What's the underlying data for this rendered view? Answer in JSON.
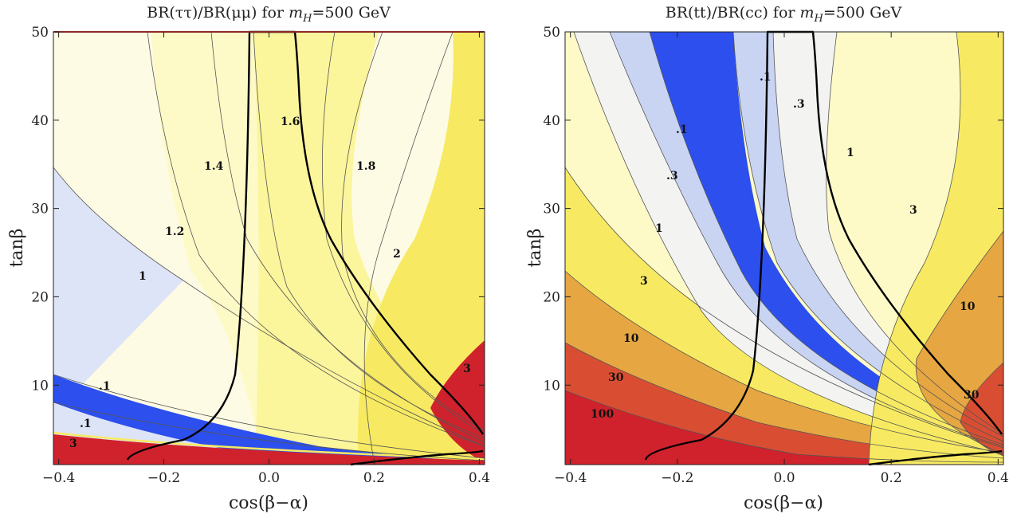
{
  "colors": {
    "red": "#d0222c",
    "orange_red": "#d94e33",
    "orange": "#e6a641",
    "yellow": "#f7ea62",
    "yellow_mid": "#fbf59c",
    "yellow_light": "#fdfac8",
    "cream": "#fefbe4",
    "light_gray": "#f3f4f1",
    "light_blue": "#c9d4f3",
    "blue": "#2c4fed",
    "pale_blue": "#dde4f7"
  },
  "chart_data": [
    {
      "type": "contour",
      "title_main": "BR(ττ)/BR(μμ) for ",
      "title_var": "m",
      "title_sub": "H",
      "title_tail": "=500 GeV",
      "xlabel": "cos(β−α)",
      "ylabel": "tanβ",
      "xlim": [
        -0.41,
        0.41
      ],
      "ylim": [
        1,
        50
      ],
      "x_ticks": [
        "−0.4",
        "−0.2",
        "0.0",
        "0.2",
        "0.4"
      ],
      "x_tick_values": [
        -0.4,
        -0.2,
        0.0,
        0.2,
        0.4
      ],
      "y_ticks": [
        "10",
        "20",
        "30",
        "40",
        "50"
      ],
      "y_tick_values": [
        10,
        20,
        30,
        40,
        50
      ],
      "contour_levels": [
        ".1",
        ".1",
        "1",
        "1.2",
        "1.4",
        "1.6",
        "1.8",
        "2",
        "3",
        "3"
      ]
    },
    {
      "type": "contour",
      "title_main": "BR(tt)/BR(cc) for ",
      "title_var": "m",
      "title_sub": "H",
      "title_tail": "=500 GeV",
      "xlabel": "cos(β−α)",
      "ylabel": "tanβ",
      "xlim": [
        -0.41,
        0.41
      ],
      "ylim": [
        1,
        50
      ],
      "x_ticks": [
        "−0.4",
        "−0.2",
        "0.0",
        "0.2",
        "0.4"
      ],
      "x_tick_values": [
        -0.4,
        -0.2,
        0.0,
        0.2,
        0.4
      ],
      "y_ticks": [
        "10",
        "20",
        "30",
        "40",
        "50"
      ],
      "y_tick_values": [
        10,
        20,
        30,
        40,
        50
      ],
      "contour_levels": [
        ".1",
        ".1",
        ".3",
        ".3",
        "1",
        "1",
        "3",
        "3",
        "10",
        "10",
        "30",
        "30",
        "100"
      ]
    }
  ]
}
